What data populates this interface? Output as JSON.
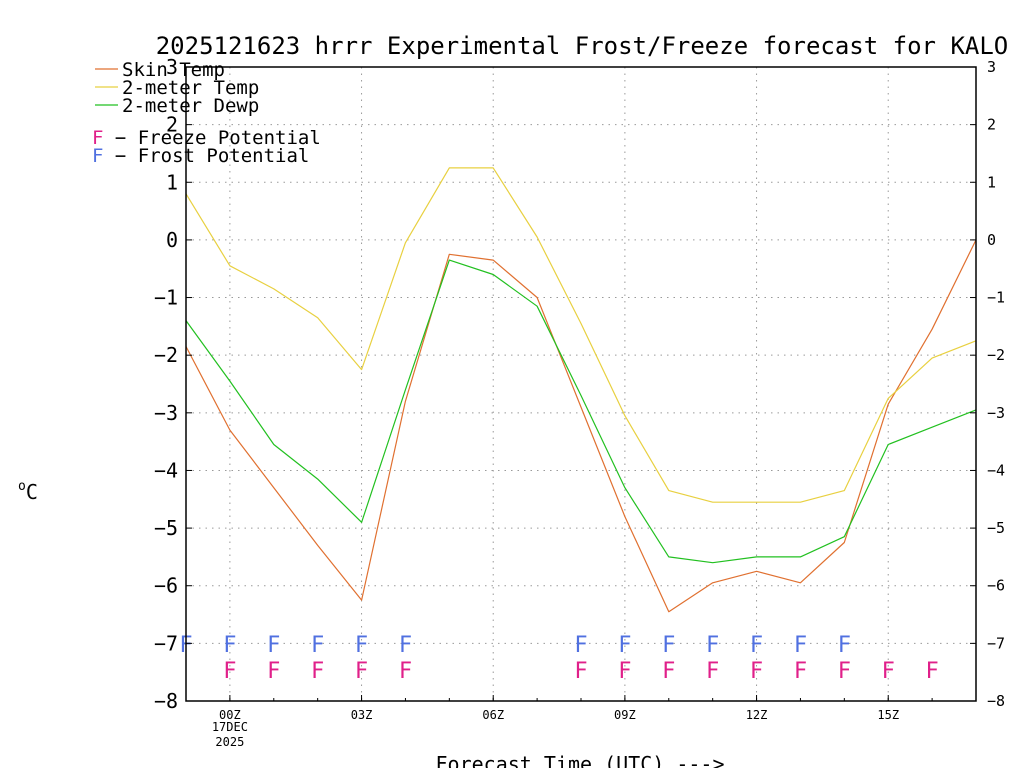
{
  "chart_data": {
    "type": "line",
    "title": "2025121623 hrrr Experimental Frost/Freeze forecast for KALO",
    "xlabel": "Forecast Time (UTC) --->",
    "ylabel_unit_sup": "o",
    "ylabel_unit": "C",
    "ylim": [
      -8,
      3
    ],
    "yticks": [
      3,
      2,
      1,
      0,
      -1,
      -2,
      -3,
      -4,
      -5,
      -6,
      -7,
      -8
    ],
    "ytick_labels": [
      "3",
      "2",
      "1",
      "0",
      "−1",
      "−2",
      "−3",
      "−4",
      "−5",
      "−6",
      "−7",
      "−8"
    ],
    "grid": true,
    "x": [
      -1,
      0,
      1,
      2,
      3,
      4,
      5,
      6,
      7,
      8,
      9,
      10,
      11,
      12,
      13,
      14,
      15,
      16,
      17
    ],
    "xticks": [
      {
        "hour": 0,
        "label": "00Z",
        "sub1": "17DEC",
        "sub2": "2025"
      },
      {
        "hour": 3,
        "label": "03Z",
        "sub1": "",
        "sub2": ""
      },
      {
        "hour": 6,
        "label": "06Z",
        "sub1": "",
        "sub2": ""
      },
      {
        "hour": 9,
        "label": "09Z",
        "sub1": "",
        "sub2": ""
      },
      {
        "hour": 12,
        "label": "12Z",
        "sub1": "",
        "sub2": ""
      },
      {
        "hour": 15,
        "label": "15Z",
        "sub1": "",
        "sub2": ""
      }
    ],
    "series": [
      {
        "name": "Skin Temp",
        "color": "#e07030",
        "values": [
          -1.85,
          -3.3,
          -4.3,
          -5.3,
          -6.25,
          -2.8,
          -0.25,
          -0.35,
          -1.0,
          -2.9,
          -4.8,
          -6.45,
          -5.95,
          -5.75,
          -5.95,
          -5.25,
          -2.85,
          -1.55,
          0.0
        ]
      },
      {
        "name": "2-meter Temp",
        "color": "#e8d040",
        "values": [
          0.8,
          -0.45,
          -0.85,
          -1.35,
          -2.25,
          -0.05,
          1.25,
          1.25,
          0.05,
          -1.45,
          -3.05,
          -4.35,
          -4.55,
          -4.55,
          -4.55,
          -4.35,
          -2.75,
          -2.05,
          -1.75
        ]
      },
      {
        "name": "2-meter Dewp",
        "color": "#22c020",
        "values": [
          -1.4,
          -2.45,
          -3.55,
          -4.15,
          -4.9,
          -2.6,
          -0.35,
          -0.6,
          -1.15,
          -2.7,
          -4.3,
          -5.5,
          -5.6,
          -5.5,
          -5.5,
          -5.15,
          -3.55,
          -3.25,
          -2.95
        ]
      }
    ],
    "legend": {
      "placement": "top-left",
      "potential_letter": "F",
      "freeze_label": " − Freeze Potential",
      "frost_label": " − Frost Potential",
      "freeze_color": "#e0208a",
      "frost_color": "#5070e0"
    },
    "frost_potential_hours": [
      -1,
      0,
      1,
      2,
      3,
      4,
      8,
      9,
      10,
      11,
      12,
      13,
      14
    ],
    "freeze_potential_hours": [
      0,
      1,
      2,
      3,
      4,
      8,
      9,
      10,
      11,
      12,
      13,
      14,
      15,
      16
    ],
    "frost_row_value": -7.15,
    "freeze_row_value": -7.6
  }
}
